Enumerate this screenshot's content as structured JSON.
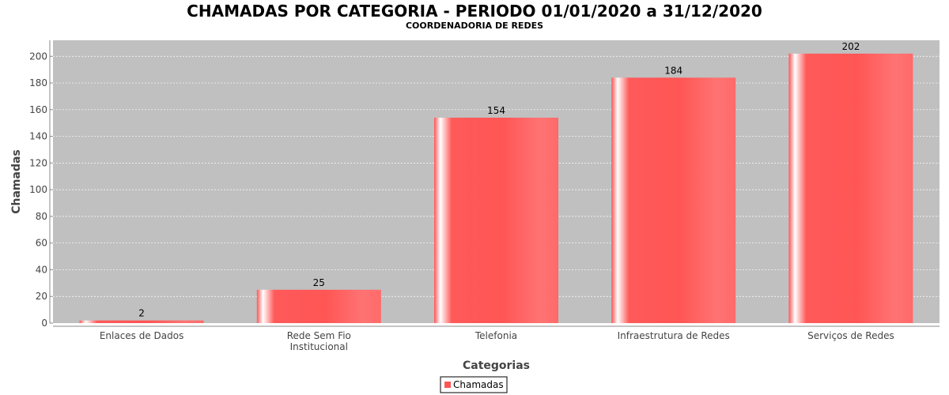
{
  "chart_data": {
    "type": "bar",
    "title": "CHAMADAS POR CATEGORIA - PERIODO 01/01/2020 a 31/12/2020",
    "subtitle": "COORDENADORIA DE REDES",
    "xlabel": "Categorias",
    "ylabel": "Chamadas",
    "categories": [
      [
        "Enlaces de Dados"
      ],
      [
        "Rede Sem Fio",
        "Institucional"
      ],
      [
        "Telefonia"
      ],
      [
        "Infraestrutura de Redes"
      ],
      [
        "Serviços de Redes"
      ]
    ],
    "series": [
      {
        "name": "Chamadas",
        "values": [
          2,
          25,
          154,
          184,
          202
        ],
        "color": "#ff5555"
      }
    ],
    "ylim": [
      0,
      212
    ],
    "yticks": [
      0,
      20,
      40,
      60,
      80,
      100,
      120,
      140,
      160,
      180,
      200
    ],
    "grid": true,
    "legend_position": "bottom-center",
    "plot_background": "#c0c0c0"
  }
}
